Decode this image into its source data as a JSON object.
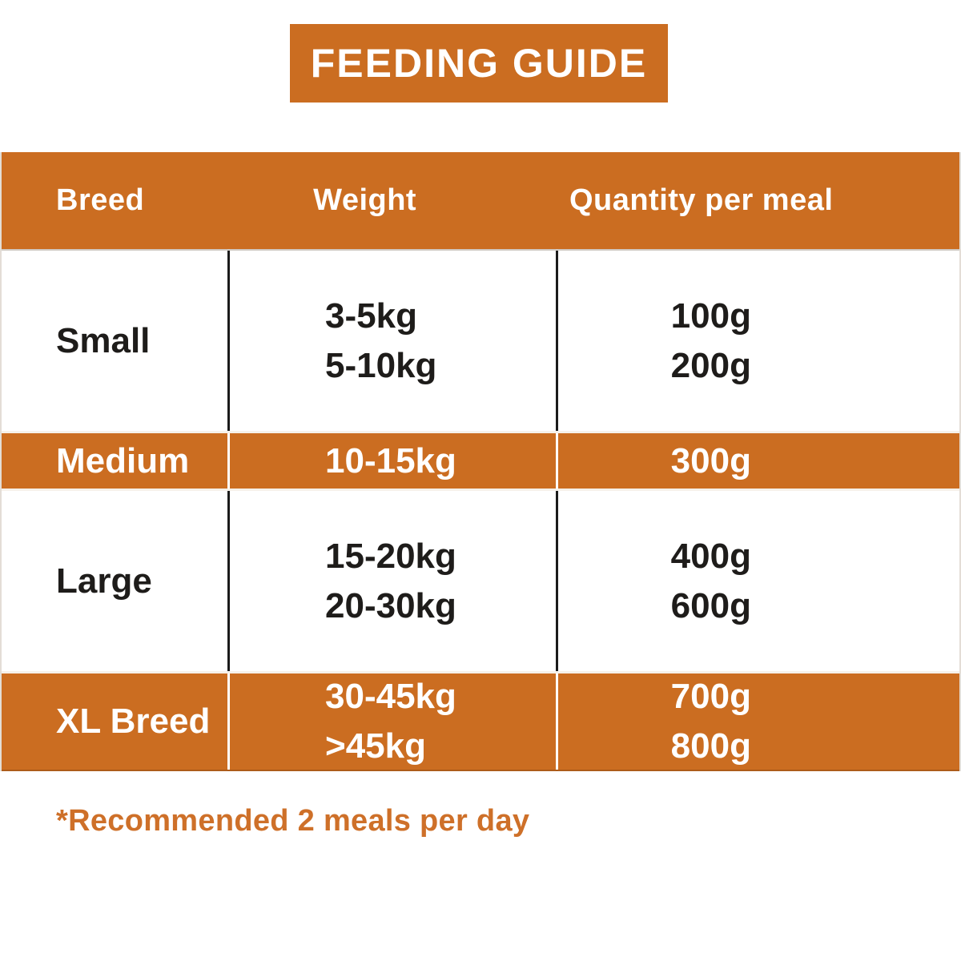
{
  "title": "FEEDING GUIDE",
  "table": {
    "headers": [
      "Breed",
      "Weight",
      "Quantity per meal"
    ],
    "rows": [
      {
        "breed": "Small",
        "weight": "3-5kg\n5-10kg",
        "quantity": "100g\n200g",
        "highlighted": false
      },
      {
        "breed": "Medium",
        "weight": "10-15kg",
        "quantity": "300g",
        "highlighted": true
      },
      {
        "breed": "Large",
        "weight": "15-20kg\n20-30kg",
        "quantity": "400g\n600g",
        "highlighted": false
      },
      {
        "breed": "XL Breed",
        "weight": "30-45kg\n>45kg",
        "quantity": "700g\n800g",
        "highlighted": true
      }
    ]
  },
  "footnote": "*Recommended 2 meals per day",
  "colors": {
    "accent_orange": "#cb6d21",
    "text_dark": "#1e1c1a",
    "text_light": "#ffffff",
    "footnote_orange": "#ce7029"
  }
}
